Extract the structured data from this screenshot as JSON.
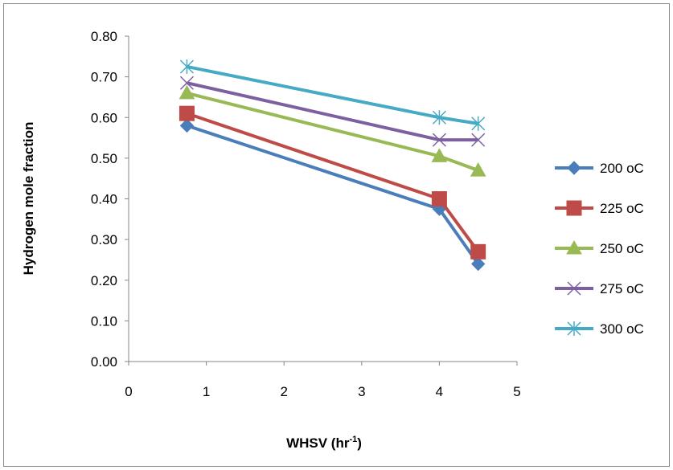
{
  "chart_data": {
    "type": "line",
    "title": "",
    "xlabel": "WHSV (hr",
    "xlabel_sup": "-1",
    "xlabel_end": ")",
    "ylabel": "Hydrogen mole fraction",
    "xlim": [
      0,
      5
    ],
    "ylim": [
      0,
      0.8
    ],
    "xticks": [
      "0",
      "1",
      "2",
      "3",
      "4",
      "5"
    ],
    "yticks": [
      "0.00",
      "0.10",
      "0.20",
      "0.30",
      "0.40",
      "0.50",
      "0.60",
      "0.70",
      "0.80"
    ],
    "grid": false,
    "legend_position": "right",
    "x": [
      0.75,
      4,
      4.5
    ],
    "series": [
      {
        "name": "200 oC",
        "color": "#4a7ebb",
        "marker": "diamond",
        "values": [
          0.58,
          0.375,
          0.24
        ]
      },
      {
        "name": "225 oC",
        "color": "#be4b48",
        "marker": "square",
        "values": [
          0.61,
          0.4,
          0.27
        ]
      },
      {
        "name": "250 oC",
        "color": "#98b954",
        "marker": "triangle",
        "values": [
          0.66,
          0.505,
          0.47
        ]
      },
      {
        "name": "275 oC",
        "color": "#7d60a0",
        "marker": "x",
        "values": [
          0.685,
          0.545,
          0.545
        ]
      },
      {
        "name": "300 oC",
        "color": "#46aac5",
        "marker": "star",
        "values": [
          0.725,
          0.6,
          0.585
        ]
      }
    ]
  }
}
